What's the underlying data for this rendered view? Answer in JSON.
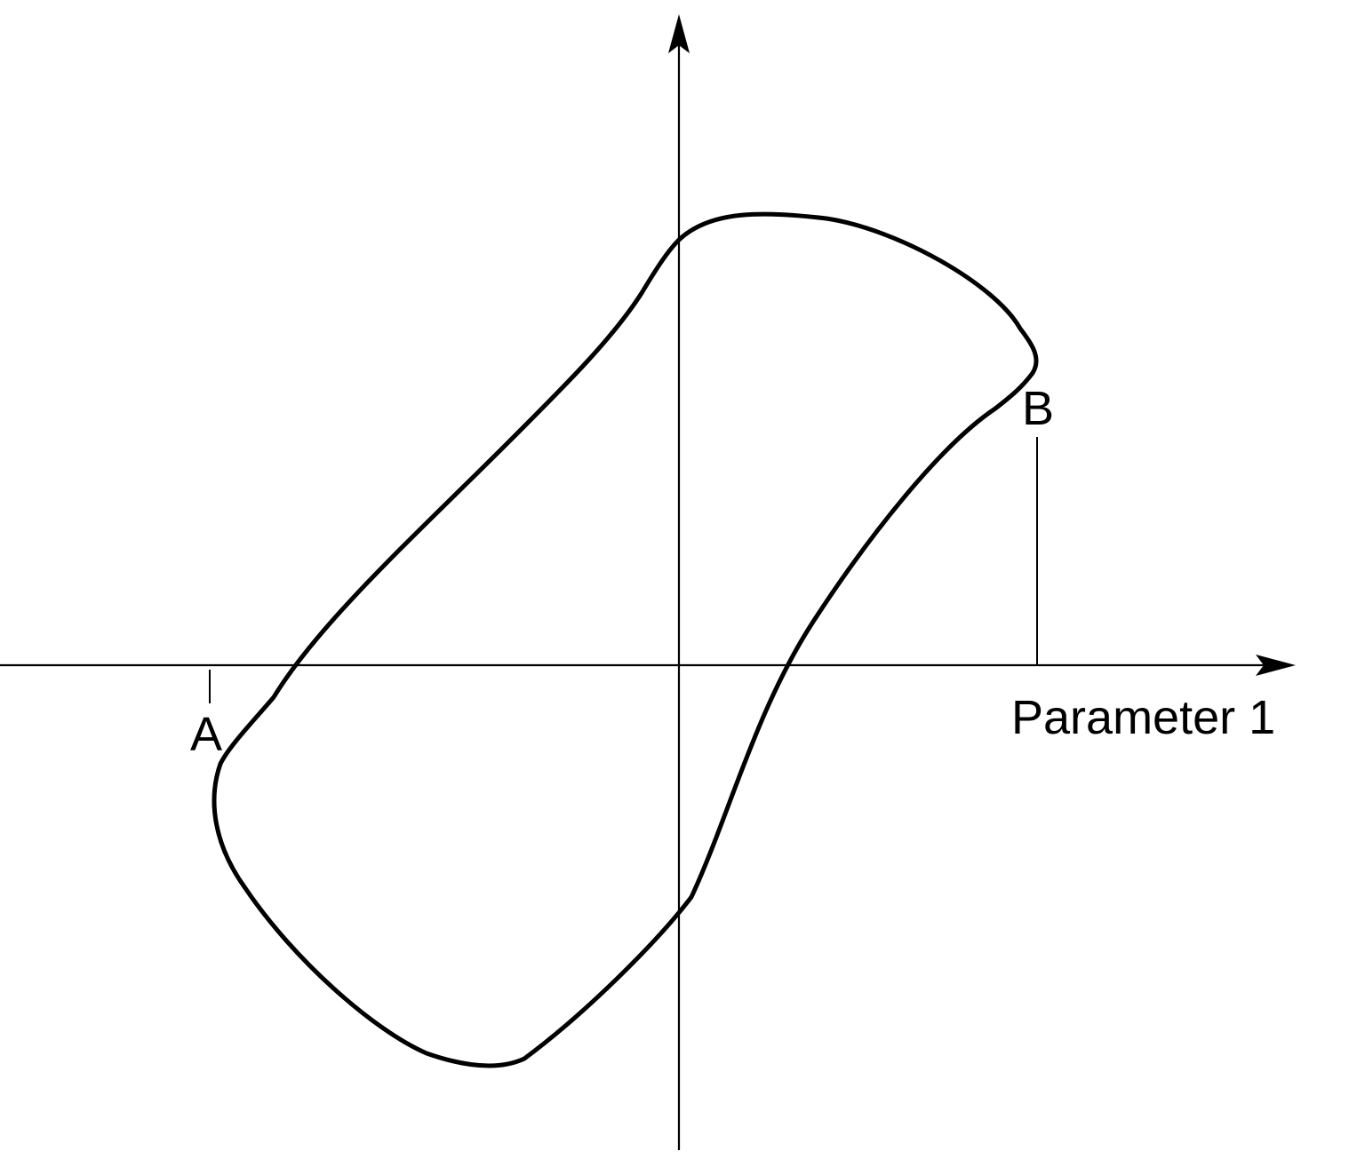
{
  "axes": {
    "x_label": "Parameter 1"
  },
  "points": {
    "a_label": "A",
    "b_label": "B"
  },
  "colors": {
    "stroke": "#000000",
    "background": "#ffffff"
  }
}
